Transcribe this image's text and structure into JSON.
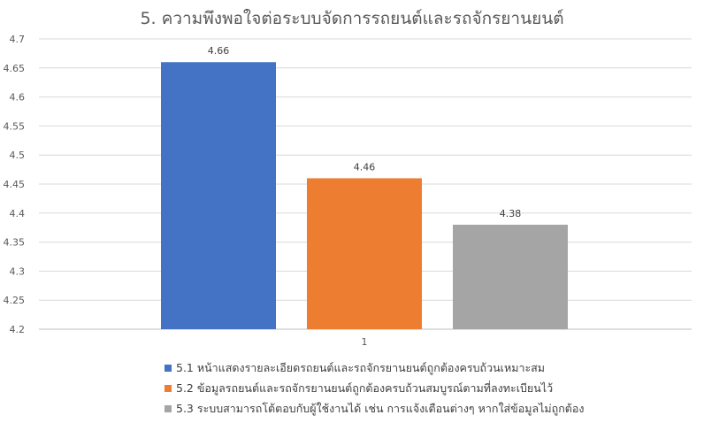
{
  "chart_data": {
    "type": "bar",
    "title": "5. ความพึงพอใจต่อระบบจัดการรถยนต์และรถจักรยานยนต์",
    "xlabel": "",
    "ylabel": "",
    "categories": [
      "1"
    ],
    "series": [
      {
        "name": "5.1 หน้าแสดงรายละเอียดรถยนต์และรถจักรยานยนต์ถูกต้องครบถ้วนเหมาะสม",
        "values": [
          4.66
        ],
        "color": "#4472C4"
      },
      {
        "name": "5.2 ข้อมูลรถยนต์และรถจักรยานยนต์ถูกต้องครบถ้วนสมบูรณ์ตามที่ลงทะเบียนไว้",
        "values": [
          4.46
        ],
        "color": "#ED7D31"
      },
      {
        "name": "5.3 ระบบสามารถโต้ตอบกับผู้ใช้งานได้ เช่น การแจ้งเตือนต่างๆ หากใส่ข้อมูลไม่ถูกต้อง",
        "values": [
          4.38
        ],
        "color": "#A5A5A5"
      }
    ],
    "data_labels": [
      "4.66",
      "4.46",
      "4.38"
    ],
    "ylim": [
      4.2,
      4.7
    ],
    "yticks": [
      "4.7",
      "4.65",
      "4.6",
      "4.55",
      "4.5",
      "4.45",
      "4.4",
      "4.35",
      "4.3",
      "4.25",
      "4.2"
    ],
    "grid": true,
    "legend_position": "bottom"
  }
}
